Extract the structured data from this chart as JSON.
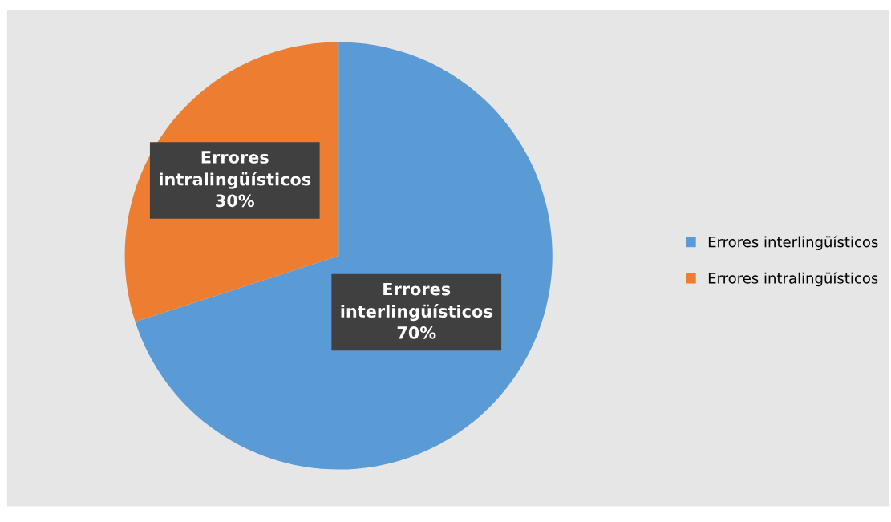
{
  "chart_data": {
    "type": "pie",
    "categories": [
      "Errores interlingüísticos",
      "Errores intralingüísticos"
    ],
    "values": [
      70,
      30
    ],
    "colors": [
      "#5b9bd5",
      "#ed7d31"
    ],
    "value_labels": [
      "70%",
      "30%"
    ],
    "legend": "right"
  }
}
